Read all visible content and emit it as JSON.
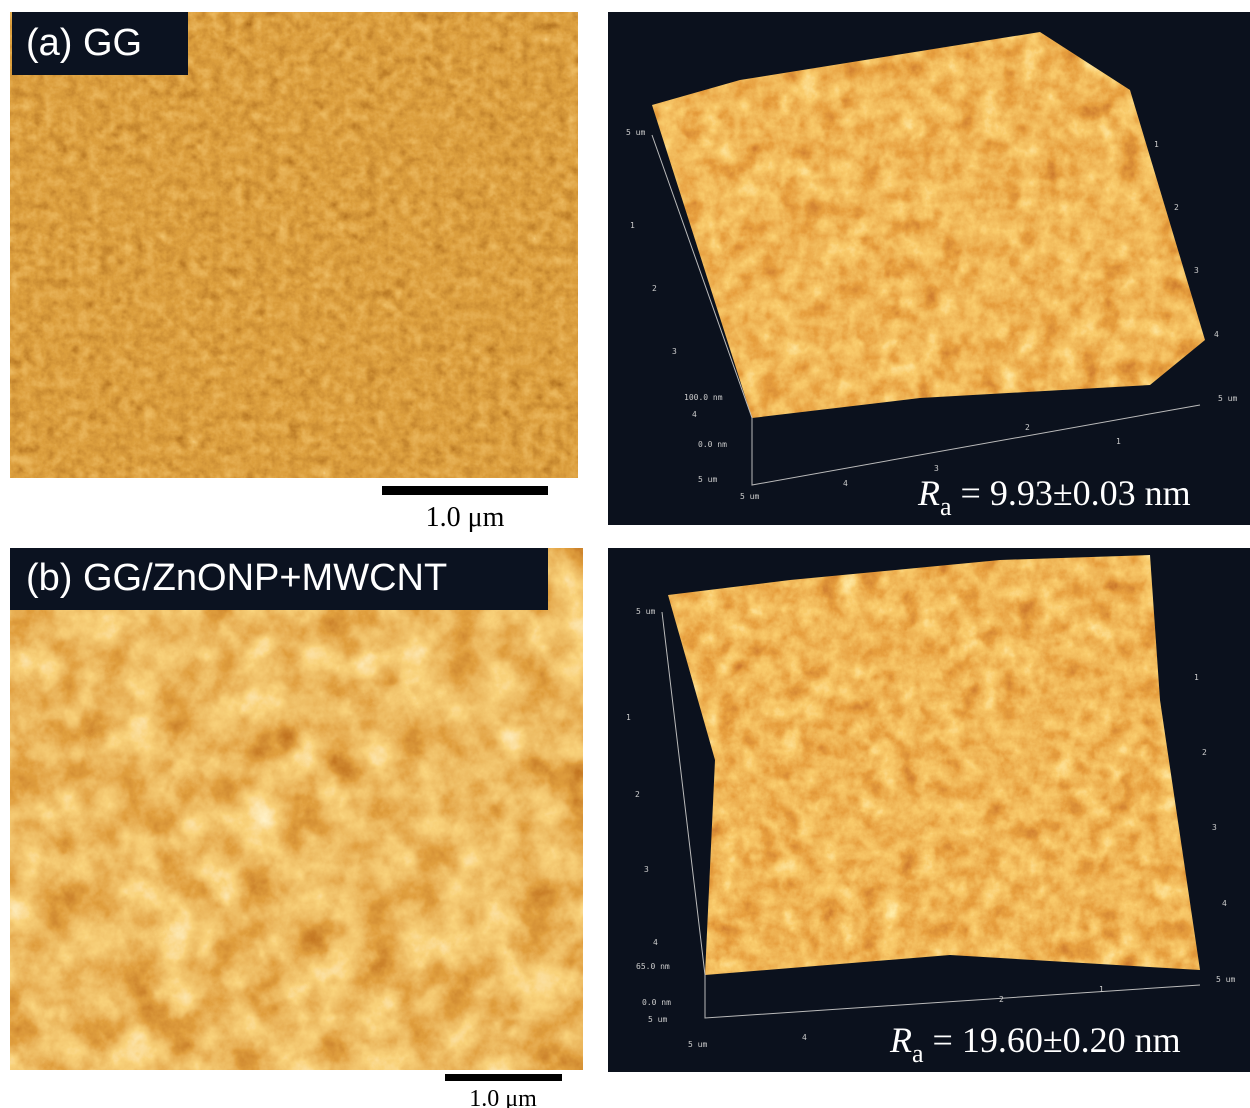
{
  "panels": [
    {
      "label": "(a) GG",
      "scale_bar": "1.0 μm",
      "surface": {
        "roughness": {
          "symbol": "R",
          "subscript": "a",
          "text": " = 9.93±0.03 nm"
        },
        "left_ticks": [
          "5 um",
          "1",
          "2",
          "3",
          "4"
        ],
        "z_ticks": [
          "100.0 nm",
          "0.0 nm",
          "5 um"
        ],
        "bottom_ticks": [
          "5 um",
          "4",
          "3",
          "2",
          "1"
        ],
        "right_ticks": [
          "1",
          "2",
          "3",
          "4",
          "5 um"
        ]
      }
    },
    {
      "label": "(b) GG/ZnONP+MWCNT",
      "scale_bar": "1.0 μm",
      "surface": {
        "roughness": {
          "symbol": "R",
          "subscript": "a",
          "text": " = 19.60±0.20 nm"
        },
        "left_ticks": [
          "5 um",
          "1",
          "2",
          "3",
          "4"
        ],
        "z_ticks": [
          "65.0 nm",
          "0.0 nm",
          "5 um"
        ],
        "bottom_ticks": [
          "5 um",
          "4",
          "2",
          "1"
        ],
        "right_ticks": [
          "1",
          "2",
          "3",
          "4",
          "5 um"
        ]
      }
    }
  ]
}
